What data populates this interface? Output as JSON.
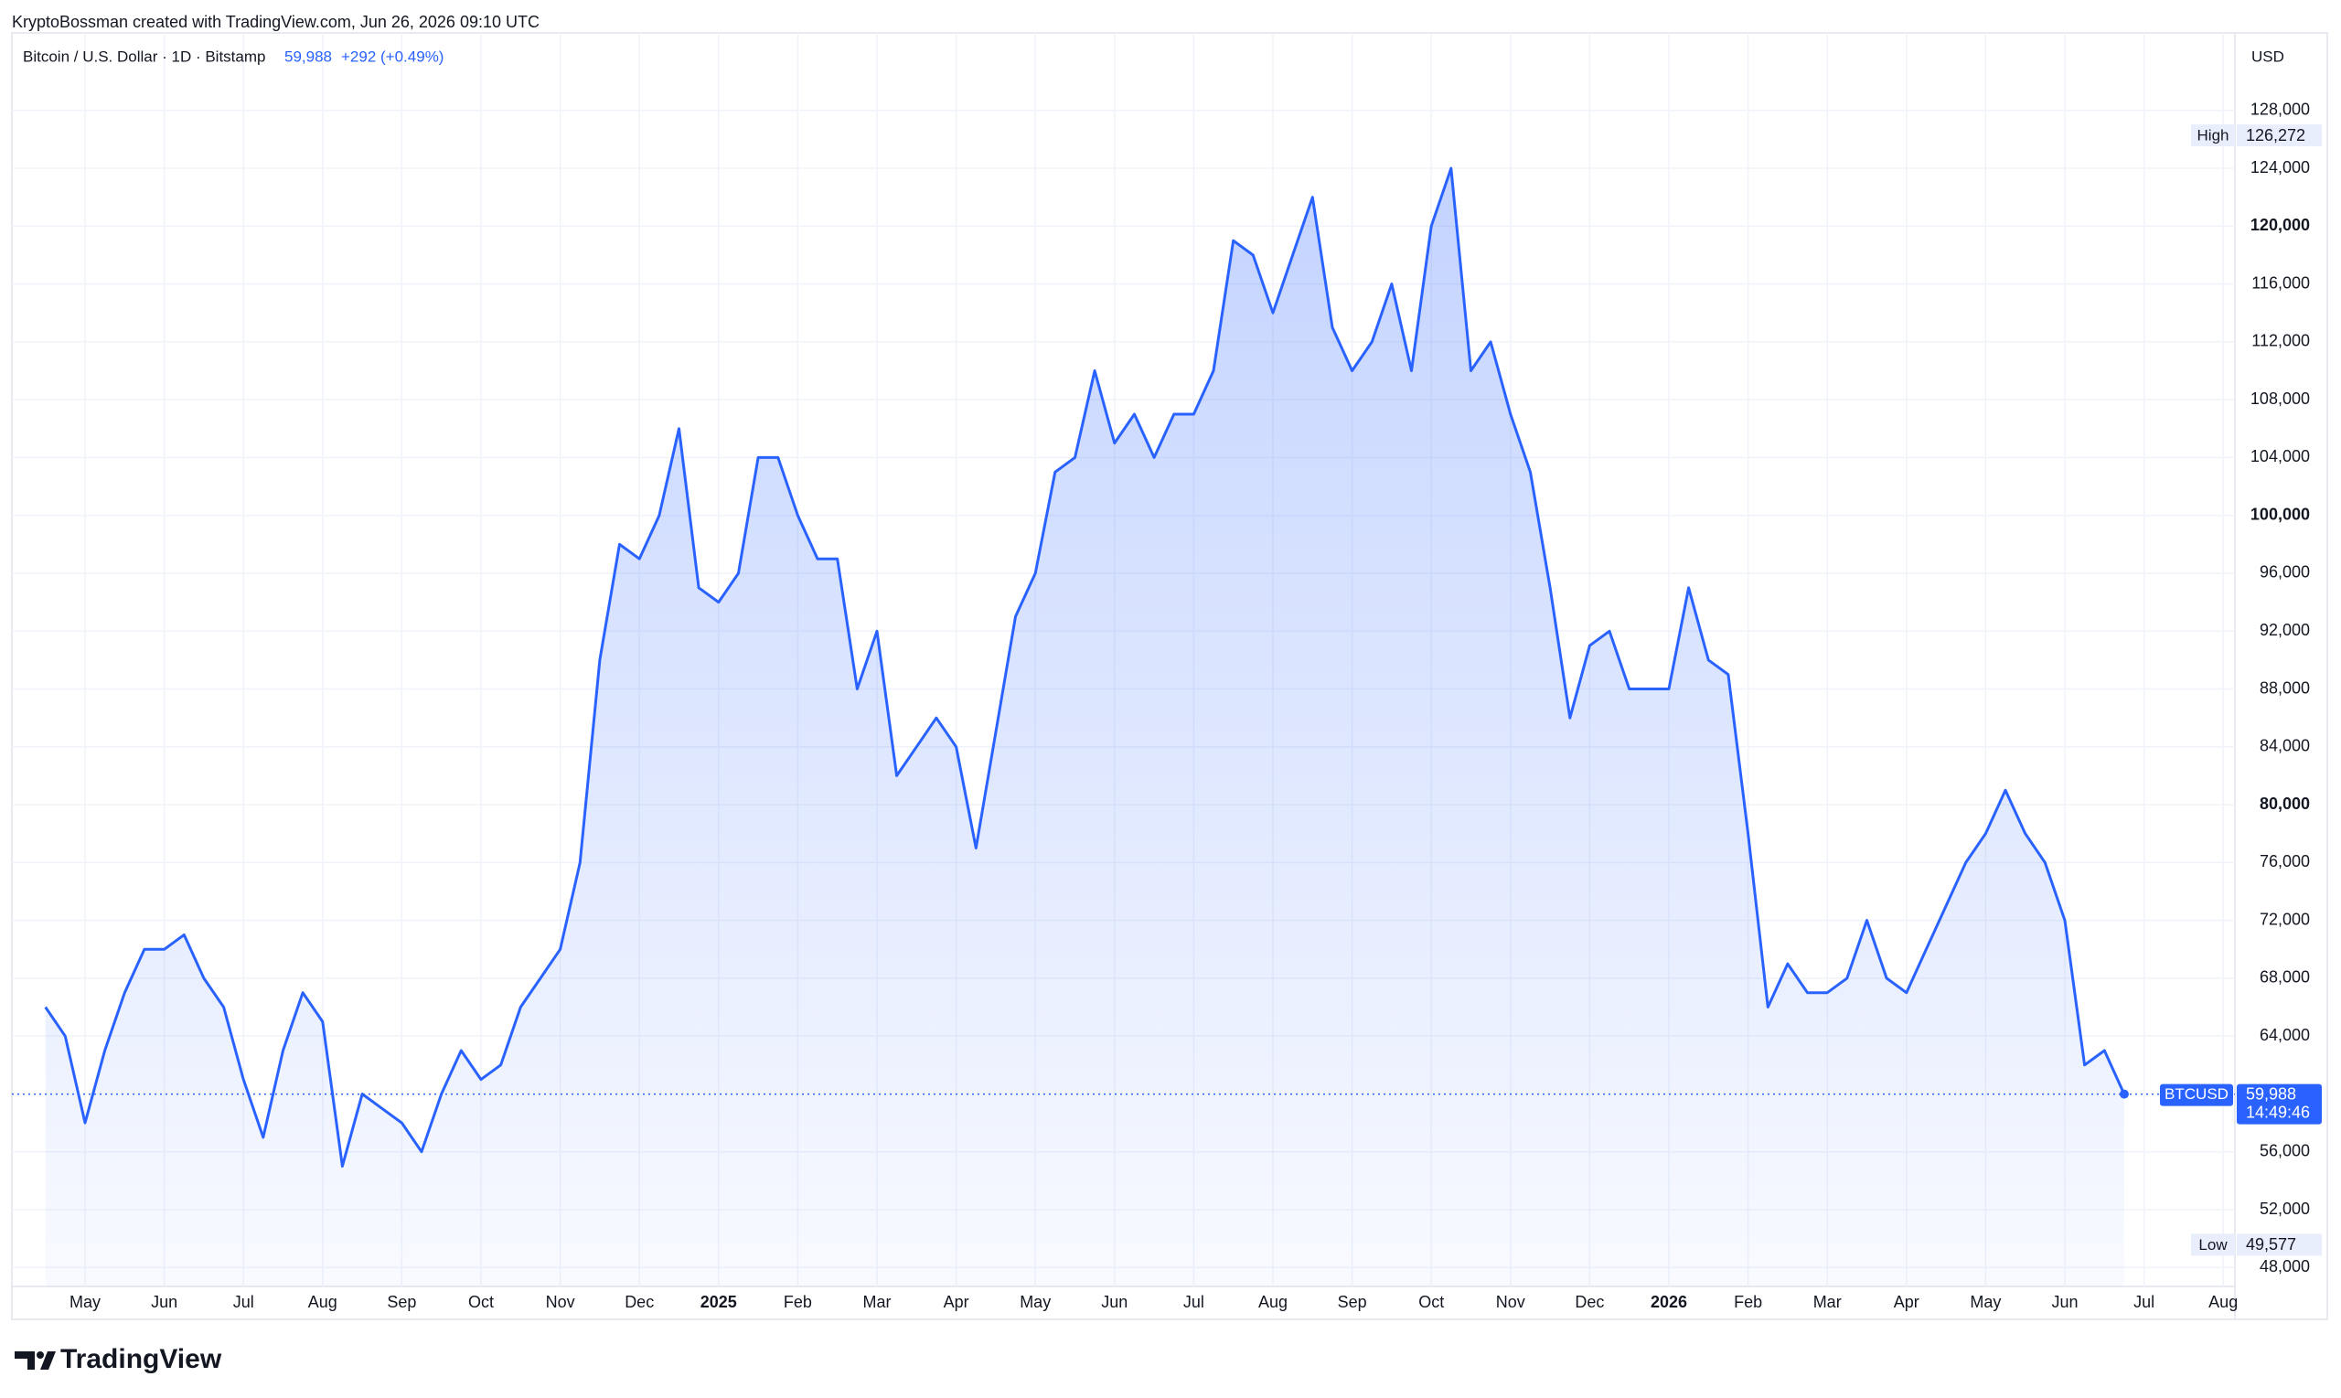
{
  "attribution": "KryptoBossman created with TradingView.com, Jun 26, 2026 09:10 UTC",
  "brand": "TradingView",
  "chart_data": {
    "type": "area",
    "symbol": "Bitcoin / U.S. Dollar · 1D · Bitstamp",
    "price": "59,988",
    "change": "+292 (+0.49%)",
    "currency": "USD",
    "color": "#2962ff",
    "grid": true,
    "categories": [
      null,
      null,
      "May",
      null,
      null,
      null,
      "Jun",
      null,
      null,
      null,
      "Jul",
      null,
      null,
      null,
      "Aug",
      null,
      null,
      null,
      "Sep",
      null,
      null,
      null,
      "Oct",
      null,
      null,
      null,
      "Nov",
      null,
      null,
      null,
      "Dec",
      null,
      null,
      null,
      "2025",
      null,
      null,
      null,
      "Feb",
      null,
      null,
      null,
      "Mar",
      null,
      null,
      null,
      "Apr",
      null,
      null,
      null,
      "May",
      null,
      null,
      null,
      "Jun",
      null,
      null,
      null,
      "Jul",
      null,
      null,
      null,
      "Aug",
      null,
      null,
      null,
      "Sep",
      null,
      null,
      null,
      "Oct",
      null,
      null,
      null,
      "Nov",
      null,
      null,
      null,
      "Dec",
      null,
      null,
      null,
      "2026",
      null,
      null,
      null,
      "Feb",
      null,
      null,
      null,
      "Mar",
      null,
      null,
      null,
      "Apr",
      null,
      null,
      null,
      "May",
      null,
      null,
      null,
      "Jun",
      null,
      null,
      null,
      "Jul",
      null,
      null,
      null,
      "Aug"
    ],
    "values": [
      66000,
      64000,
      58000,
      63000,
      67000,
      70000,
      70000,
      71000,
      68000,
      66000,
      61000,
      57000,
      63000,
      67000,
      65000,
      55000,
      60000,
      59000,
      58000,
      56000,
      60000,
      63000,
      61000,
      62000,
      66000,
      68000,
      70000,
      76000,
      90000,
      98000,
      97000,
      100000,
      106000,
      95000,
      94000,
      96000,
      104000,
      104000,
      100000,
      97000,
      97000,
      88000,
      92000,
      82000,
      84000,
      86000,
      84000,
      77000,
      85000,
      93000,
      96000,
      103000,
      104000,
      110000,
      105000,
      107000,
      104000,
      107000,
      107000,
      110000,
      119000,
      118000,
      114000,
      118000,
      122000,
      113000,
      110000,
      112000,
      116000,
      110000,
      120000,
      124000,
      110000,
      112000,
      107000,
      103000,
      95000,
      86000,
      91000,
      92000,
      88000,
      88000,
      88000,
      95000,
      90000,
      89000,
      78000,
      66000,
      69000,
      67000,
      67000,
      68000,
      72000,
      68000,
      67000,
      70000,
      73000,
      76000,
      78000,
      81000,
      78000,
      76000,
      72000,
      62000,
      63000,
      59988,
      null,
      null,
      null,
      null,
      null
    ],
    "ylim": [
      46690,
      133360
    ],
    "yticks": [
      {
        "value": 48000,
        "label": "48,000"
      },
      {
        "value": 52000,
        "label": "52,000"
      },
      {
        "value": 56000,
        "label": "56,000"
      },
      {
        "value": 64000,
        "label": "64,000"
      },
      {
        "value": 68000,
        "label": "68,000"
      },
      {
        "value": 72000,
        "label": "72,000"
      },
      {
        "value": 76000,
        "label": "76,000"
      },
      {
        "value": 80000,
        "label": "80,000"
      },
      {
        "value": 84000,
        "label": "84,000"
      },
      {
        "value": 88000,
        "label": "88,000"
      },
      {
        "value": 92000,
        "label": "92,000"
      },
      {
        "value": 96000,
        "label": "96,000"
      },
      {
        "value": 100000,
        "label": "100,000"
      },
      {
        "value": 104000,
        "label": "104,000"
      },
      {
        "value": 108000,
        "label": "108,000"
      },
      {
        "value": 112000,
        "label": "112,000"
      },
      {
        "value": 116000,
        "label": "116,000"
      },
      {
        "value": 120000,
        "label": "120,000"
      },
      {
        "value": 124000,
        "label": "124,000"
      },
      {
        "value": 128000,
        "label": "128,000"
      }
    ],
    "markers": [
      {
        "label": "High",
        "value": 126272,
        "value_label": "126,272"
      },
      {
        "label": "Low",
        "value": 49577,
        "value_label": "49,577"
      }
    ],
    "last": {
      "name": "BTCUSD",
      "value": 59988,
      "value_label": "59,988",
      "countdown": "14:49:46"
    }
  }
}
